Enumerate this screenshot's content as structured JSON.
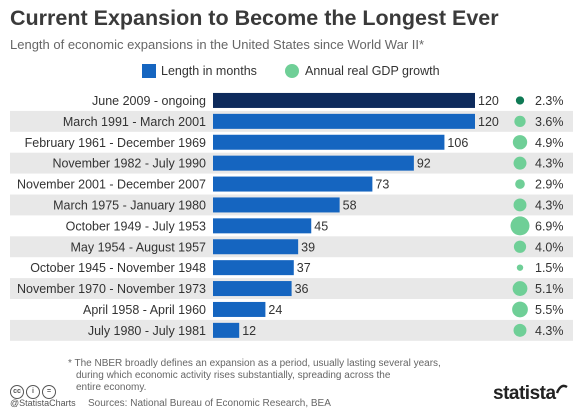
{
  "header": {
    "title": "Current Expansion to Become the Longest Ever",
    "subtitle": "Length of economic expansions in the United States since World War II*"
  },
  "legend": {
    "bar_label": "Length in months",
    "dot_label": "Annual real GDP growth"
  },
  "colors": {
    "bar": "#1565c0",
    "bar_highlight": "#0d2a5c",
    "dot": "#6fcf97",
    "dot_highlight": "#0f7a55",
    "row_band": "#e8e8e8"
  },
  "chart_data": {
    "type": "bar",
    "orientation": "horizontal",
    "categories": [
      "June 2009 - ongoing",
      "March 1991 - March 2001",
      "February 1961 - December 1969",
      "November 1982 - July 1990",
      "November 2001 - December 2007",
      "March 1975 - January 1980",
      "October 1949 - July 1953",
      "May 1954 - August 1957",
      "October 1945 - November 1948",
      "November 1970 - November 1973",
      "April 1958 - April 1960",
      "July 1980 - July 1981"
    ],
    "series": [
      {
        "name": "Length in months",
        "values": [
          120,
          120,
          106,
          92,
          73,
          58,
          45,
          39,
          37,
          36,
          24,
          12
        ]
      },
      {
        "name": "Annual real GDP growth",
        "values": [
          2.3,
          3.6,
          4.9,
          4.3,
          2.9,
          4.3,
          6.9,
          4.0,
          1.5,
          5.1,
          5.5,
          4.3
        ],
        "labels": [
          "2.3%",
          "3.6%",
          "4.9%",
          "4.3%",
          "2.9%",
          "4.3%",
          "6.9%",
          "4.0%",
          "1.5%",
          "5.1%",
          "5.5%",
          "4.3%"
        ]
      }
    ],
    "bar_labels": [
      "120",
      "120",
      "106",
      "92",
      "73",
      "58",
      "45",
      "39",
      "37",
      "36",
      "24",
      "12"
    ],
    "xlim": [
      0,
      120
    ],
    "grid": false,
    "legend_position": "top"
  },
  "footnote": {
    "line1": "* The NBER broadly defines an expansion as a period, usually lasting several years,",
    "line2": "during which economic activity rises substantially, spreading across the",
    "line3": "entire economy."
  },
  "footer": {
    "handle": "@StatistaCharts",
    "sources": "Sources: National Bureau of Economic Research, BEA",
    "logo": "statista",
    "license_icons": [
      "cc",
      "i",
      "="
    ]
  }
}
